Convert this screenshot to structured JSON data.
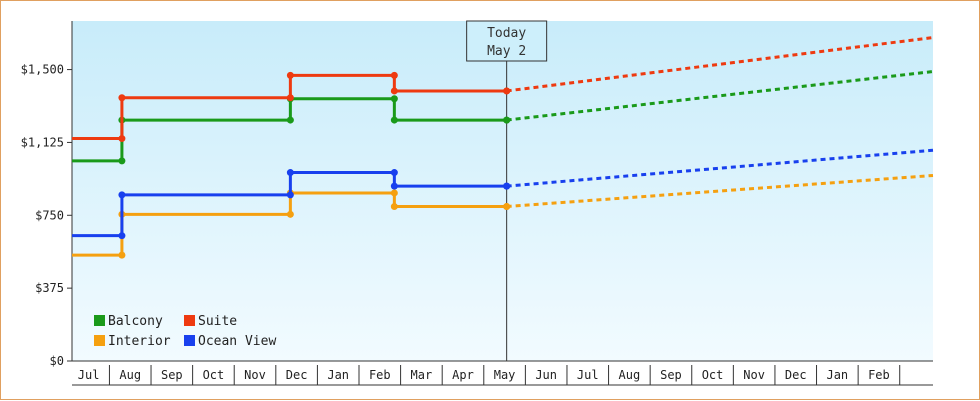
{
  "chart_data": {
    "type": "line",
    "title": "",
    "xlabel": "",
    "ylabel": "",
    "y_ticks": [
      "$0",
      "$375",
      "$750",
      "$1,125",
      "$1,500"
    ],
    "y_tick_values": [
      0,
      375,
      750,
      1125,
      1500
    ],
    "ylim": [
      0,
      1750
    ],
    "x_months": [
      "Jul",
      "Aug",
      "Sep",
      "Oct",
      "Nov",
      "Dec",
      "Jan",
      "Feb",
      "Mar",
      "Apr",
      "May",
      "Jun",
      "Jul",
      "Aug",
      "Sep",
      "Oct",
      "Nov",
      "Dec",
      "Jan",
      "Feb"
    ],
    "x_range_months": [
      -0.4,
      20.3
    ],
    "today_month_index": 10.05,
    "today_label_1": "Today",
    "today_label_2": "May 2",
    "grid": false,
    "legend_position": "bottom-left",
    "series": [
      {
        "name": "Balcony",
        "color": "#1a9a1a",
        "steps": [
          [
            -0.4,
            1030
          ],
          [
            0.8,
            1240
          ],
          [
            4.85,
            1350
          ],
          [
            7.35,
            1240
          ],
          [
            10.05,
            1240
          ]
        ],
        "forecast": [
          [
            10.05,
            1240
          ],
          [
            20.3,
            1490
          ]
        ]
      },
      {
        "name": "Suite",
        "color": "#ee3a10",
        "steps": [
          [
            -0.4,
            1145
          ],
          [
            0.8,
            1355
          ],
          [
            4.85,
            1470
          ],
          [
            7.35,
            1390
          ],
          [
            10.05,
            1390
          ]
        ],
        "forecast": [
          [
            10.05,
            1390
          ],
          [
            20.3,
            1665
          ]
        ]
      },
      {
        "name": "Interior",
        "color": "#f5a010",
        "steps": [
          [
            -0.4,
            545
          ],
          [
            0.8,
            755
          ],
          [
            4.85,
            865
          ],
          [
            7.35,
            795
          ],
          [
            10.05,
            795
          ]
        ],
        "forecast": [
          [
            10.05,
            795
          ],
          [
            20.3,
            955
          ]
        ]
      },
      {
        "name": "Ocean View",
        "color": "#1840ee",
        "steps": [
          [
            -0.4,
            645
          ],
          [
            0.8,
            855
          ],
          [
            4.85,
            970
          ],
          [
            7.35,
            900
          ],
          [
            10.05,
            900
          ]
        ],
        "forecast": [
          [
            10.05,
            900
          ],
          [
            20.3,
            1085
          ]
        ]
      }
    ]
  }
}
